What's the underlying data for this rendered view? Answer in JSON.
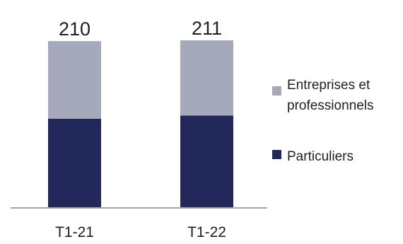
{
  "chart_data": {
    "type": "bar",
    "stacked": true,
    "categories": [
      "T1-21",
      "T1-22"
    ],
    "totals": [
      "210",
      "211"
    ],
    "series": [
      {
        "name": "Particuliers",
        "values": [
          112,
          116
        ],
        "color": "#22285a"
      },
      {
        "name": "Entreprises et professionnels",
        "values": [
          98,
          95
        ],
        "color": "#a6a9b9"
      }
    ],
    "legend": {
      "placement": "right",
      "entries": [
        {
          "lines": [
            "Entreprises et",
            "professionnels"
          ],
          "color": "#a6a9b9"
        },
        {
          "lines": [
            "Particuliers"
          ],
          "color": "#22285a"
        }
      ]
    },
    "title": "",
    "xlabel": "",
    "ylabel": "",
    "ylim": [
      0,
      262
    ],
    "grid": false
  }
}
